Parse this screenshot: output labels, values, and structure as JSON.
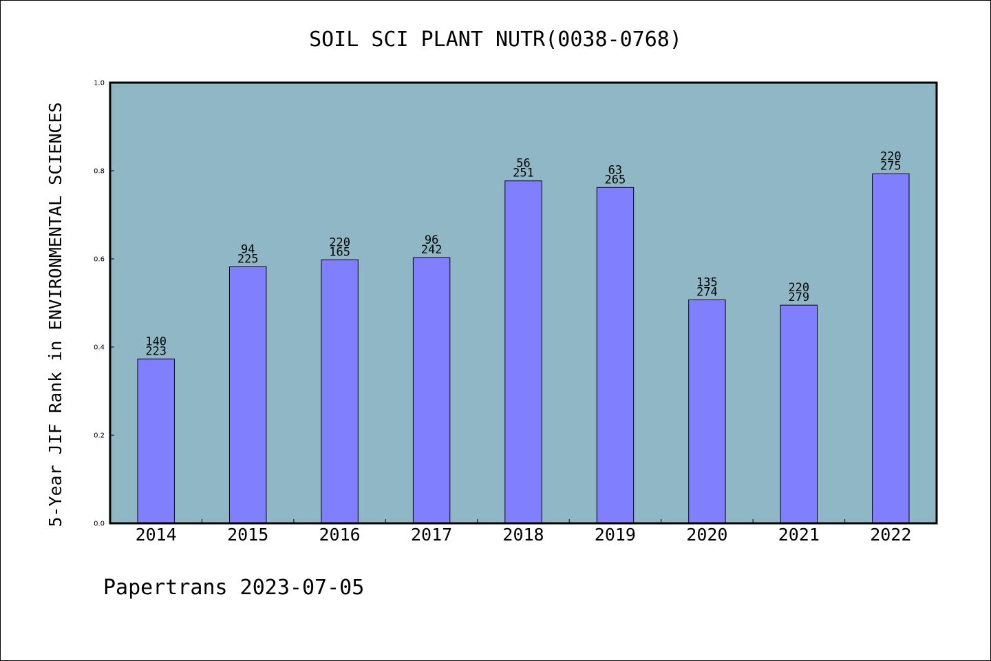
{
  "chart_data": {
    "type": "bar",
    "title": "SOIL SCI PLANT NUTR(0038-0768)",
    "ylabel": "5-Year JIF Rank in ENVIRONMENTAL SCIENCES",
    "xlabel": "",
    "ylim": [
      0.0,
      1.0
    ],
    "yticks": [
      "0.0",
      "0.2",
      "0.4",
      "0.6",
      "0.8",
      "1.0"
    ],
    "categories": [
      "2014",
      "2015",
      "2016",
      "2017",
      "2018",
      "2019",
      "2020",
      "2021",
      "2022"
    ],
    "values": [
      0.373,
      0.582,
      0.598,
      0.603,
      0.777,
      0.762,
      0.507,
      0.495,
      0.793
    ],
    "labels_top": [
      "140",
      "94",
      "220",
      "96",
      "56",
      "63",
      "135",
      "220",
      "220"
    ],
    "labels_bottom": [
      "223",
      "225",
      "165",
      "242",
      "251",
      "265",
      "274",
      "279",
      "275"
    ],
    "grid": false,
    "colors": {
      "plot_background": "#8fb7c6",
      "bar_fill": "#8080ff",
      "bar_stroke": "#000000"
    }
  },
  "footer": "Papertrans 2023-07-05"
}
